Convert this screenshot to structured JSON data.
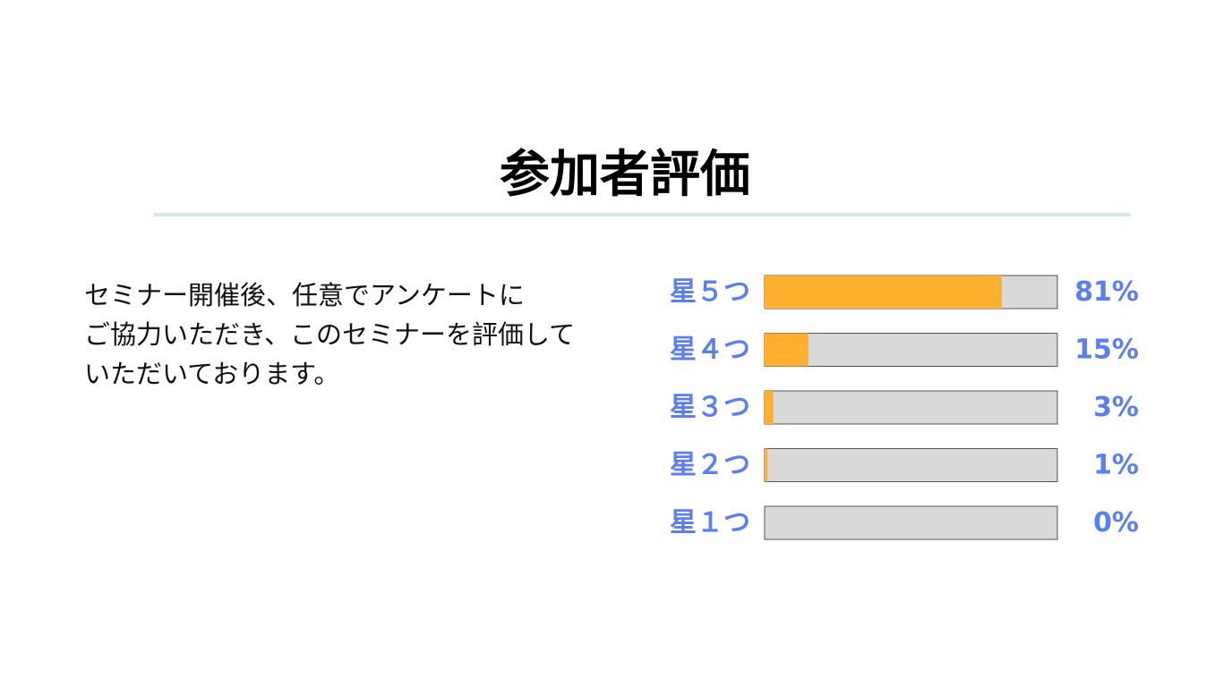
{
  "slide": {
    "title": "参加者評価",
    "description": [
      "セミナー開催後、任意でアンケートに",
      "ご協力いただき、このセミナーを評価して",
      "いただいております。"
    ]
  },
  "colors": {
    "accent": "#5b7ef4",
    "bar_fill": "#ffb02e",
    "bar_track": "#d9d9d9",
    "divider": "#d3e8e1"
  },
  "chart_data": {
    "type": "bar",
    "orientation": "horizontal",
    "categories": [
      "星５つ",
      "星４つ",
      "星３つ",
      "星２つ",
      "星１つ"
    ],
    "values": [
      81,
      15,
      3,
      1,
      0
    ],
    "value_labels": [
      "81%",
      "15%",
      "3%",
      "1%",
      "0%"
    ],
    "xlim": [
      0,
      100
    ],
    "unit": "%",
    "grid": false
  }
}
